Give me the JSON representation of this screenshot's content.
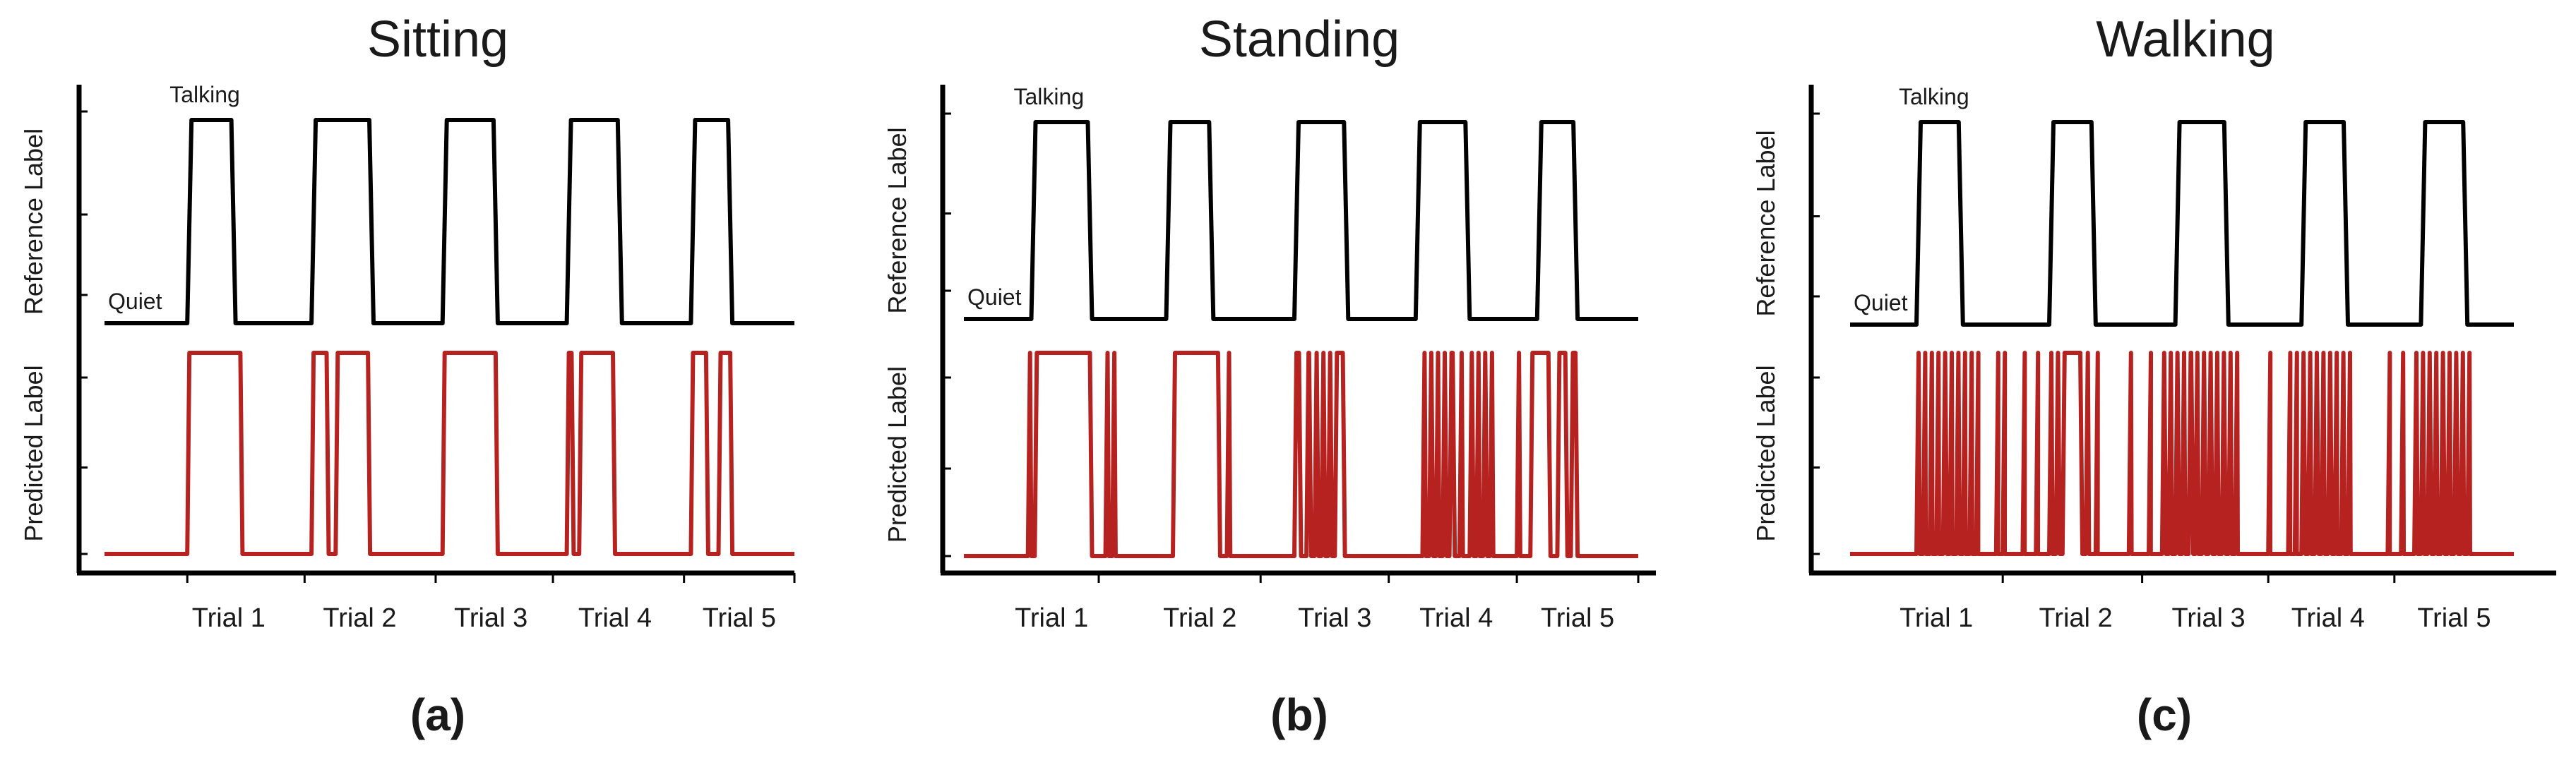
{
  "colors": {
    "reference": "#000000",
    "predicted": "#b5221f",
    "axis": "#000000",
    "text": "#1a1a1a"
  },
  "chart_data": [
    {
      "type": "line",
      "panel": "a",
      "panel_label": "(a)",
      "title": "Sitting",
      "ylabel_top": "Reference Label",
      "ylabel_bottom": "Predicted Label",
      "state_high": "Talking",
      "state_low": "Quiet",
      "categories": [
        "Trial 1",
        "Trial 2",
        "Trial 3",
        "Trial 4",
        "Trial 5"
      ],
      "xlim": [
        0,
        100
      ],
      "ylim": [
        0,
        1
      ],
      "category_x": [
        18,
        37,
        56,
        74,
        92
      ],
      "minor_ticks_x": [
        12,
        29,
        48,
        65,
        84,
        100
      ],
      "series": [
        {
          "name": "Reference Label",
          "segments_high": [
            [
              12,
              19
            ],
            [
              30,
              39
            ],
            [
              49,
              57
            ],
            [
              67,
              75
            ],
            [
              85,
              91
            ]
          ]
        },
        {
          "name": "Predicted Label",
          "segments_high": [
            [
              12,
              20
            ],
            [
              30,
              32.5
            ],
            [
              33.5,
              38.5
            ],
            [
              49,
              57
            ],
            [
              67,
              68
            ],
            [
              68.8,
              74
            ],
            [
              85,
              87.5
            ],
            [
              89,
              91
            ]
          ]
        }
      ]
    },
    {
      "type": "line",
      "panel": "b",
      "panel_label": "(b)",
      "title": "Standing",
      "ylabel_top": "Reference Label",
      "ylabel_bottom": "Predicted Label",
      "state_high": "Talking",
      "state_low": "Quiet",
      "categories": [
        "Trial 1",
        "Trial 2",
        "Trial 3",
        "Trial 4",
        "Trial 5"
      ],
      "xlim": [
        0,
        100
      ],
      "ylim": [
        0,
        1
      ],
      "category_x": [
        13,
        35,
        55,
        73,
        91
      ],
      "minor_ticks_x": [
        20,
        44,
        63,
        82,
        100
      ],
      "series": [
        {
          "name": "Reference Label",
          "segments_high": [
            [
              10,
              19
            ],
            [
              30,
              37
            ],
            [
              49,
              57
            ],
            [
              67,
              75
            ],
            [
              85,
              91
            ]
          ]
        },
        {
          "name": "Predicted Label",
          "segments_high": [
            [
              9.5,
              10
            ],
            [
              10.5,
              19
            ],
            [
              21,
              21.5
            ],
            [
              22,
              22.5
            ],
            [
              31,
              38
            ],
            [
              39,
              39.5
            ],
            [
              49,
              50
            ],
            [
              50.8,
              51.5
            ],
            [
              52,
              52.6
            ],
            [
              53,
              53.6
            ],
            [
              54,
              54.6
            ],
            [
              55,
              56.5
            ],
            [
              68,
              68.5
            ],
            [
              69,
              69.6
            ],
            [
              70,
              70.5
            ],
            [
              71,
              71.6
            ],
            [
              72,
              72.8
            ],
            [
              73.5,
              74
            ],
            [
              75,
              75.6
            ],
            [
              76,
              76.5
            ],
            [
              77,
              77.6
            ],
            [
              78,
              78.5
            ],
            [
              82,
              82.5
            ],
            [
              84,
              87
            ],
            [
              88,
              89.5
            ],
            [
              90,
              91
            ]
          ]
        }
      ]
    },
    {
      "type": "line",
      "panel": "c",
      "panel_label": "(c)",
      "title": "Walking",
      "ylabel_top": "Reference Label",
      "ylabel_bottom": "Predicted Label",
      "state_high": "Talking",
      "state_low": "Quiet",
      "categories": [
        "Trial 1",
        "Trial 2",
        "Trial 3",
        "Trial 4",
        "Trial 5"
      ],
      "xlim": [
        0,
        100
      ],
      "ylim": [
        0,
        1
      ],
      "category_x": [
        13,
        34,
        54,
        72,
        91
      ],
      "minor_ticks_x": [
        23,
        44,
        63,
        82
      ],
      "series": [
        {
          "name": "Reference Label",
          "segments_high": [
            [
              10,
              17
            ],
            [
              30,
              37
            ],
            [
              49,
              57
            ],
            [
              68,
              75
            ],
            [
              86,
              93
            ]
          ]
        },
        {
          "name": "Predicted Label",
          "segments_high": [
            [
              10,
              10.5
            ],
            [
              11,
              11.4
            ],
            [
              12,
              12.4
            ],
            [
              13,
              13.4
            ],
            [
              14,
              14.6
            ],
            [
              15,
              15.4
            ],
            [
              16,
              16.5
            ],
            [
              17,
              17.4
            ],
            [
              18,
              18.4
            ],
            [
              19,
              19.3
            ],
            [
              22,
              22.3
            ],
            [
              23,
              23.3
            ],
            [
              26,
              26.3
            ],
            [
              28,
              28.3
            ],
            [
              30,
              30.5
            ],
            [
              31,
              31.6
            ],
            [
              32,
              35
            ],
            [
              35.5,
              36
            ],
            [
              37,
              37.3
            ],
            [
              42,
              42.4
            ],
            [
              45,
              45.3
            ],
            [
              47,
              47.6
            ],
            [
              48,
              48.5
            ],
            [
              49,
              49.6
            ],
            [
              50,
              50.5
            ],
            [
              51,
              51.7
            ],
            [
              52,
              52.5
            ],
            [
              53,
              53.6
            ],
            [
              54,
              54.6
            ],
            [
              55,
              55.5
            ],
            [
              56,
              56.6
            ],
            [
              57,
              57.5
            ],
            [
              58,
              58.4
            ],
            [
              63,
              63.3
            ],
            [
              66,
              66.3
            ],
            [
              67,
              67.3
            ],
            [
              68,
              68.6
            ],
            [
              69,
              69.5
            ],
            [
              70,
              70.6
            ],
            [
              71,
              71.5
            ],
            [
              72,
              72.6
            ],
            [
              73,
              73.4
            ],
            [
              74,
              74.5
            ],
            [
              75,
              75.4
            ],
            [
              81,
              81.3
            ],
            [
              83,
              83.4
            ],
            [
              85,
              85.5
            ],
            [
              86,
              86.5
            ],
            [
              87,
              87.6
            ],
            [
              88,
              88.5
            ],
            [
              89,
              89.6
            ],
            [
              90,
              90.5
            ],
            [
              91,
              91.6
            ],
            [
              92,
              92.5
            ],
            [
              93,
              93.4
            ]
          ]
        }
      ]
    }
  ]
}
